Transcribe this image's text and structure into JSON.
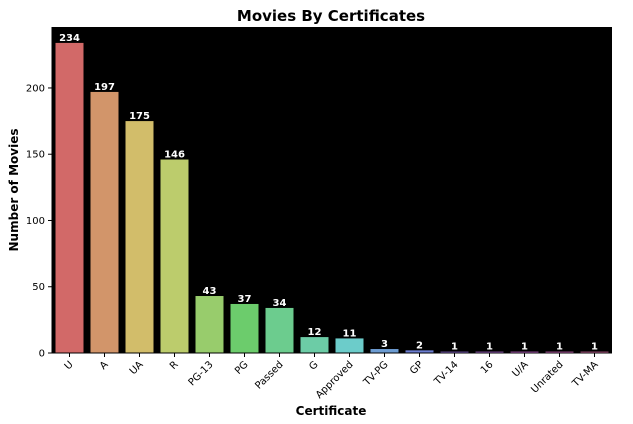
{
  "chart_data": {
    "type": "bar",
    "title": "Movies By Certificates",
    "xlabel": "Certificate",
    "ylabel": "Number of Movies",
    "categories": [
      "U",
      "A",
      "UA",
      "R",
      "PG-13",
      "PG",
      "Passed",
      "G",
      "Approved",
      "TV-PG",
      "GP",
      "TV-14",
      "16",
      "U/A",
      "Unrated",
      "TV-MA"
    ],
    "values": [
      234,
      197,
      175,
      146,
      43,
      37,
      34,
      12,
      11,
      3,
      2,
      1,
      1,
      1,
      1,
      1
    ],
    "ylim": [
      0,
      246
    ],
    "yticks": [
      0,
      50,
      100,
      150,
      200
    ],
    "grid": false,
    "plot_background": "#000000",
    "colors": [
      "#d26968",
      "#d2956a",
      "#d2bd6a",
      "#bccc6c",
      "#98cc6c",
      "#6ccc6c",
      "#6ccc8e",
      "#6ccca6",
      "#6cccca",
      "#6c9cd2",
      "#6c7ed2",
      "#906cd2",
      "#ac6cd2",
      "#c86cd2",
      "#d26cc0",
      "#d26ca0"
    ]
  }
}
